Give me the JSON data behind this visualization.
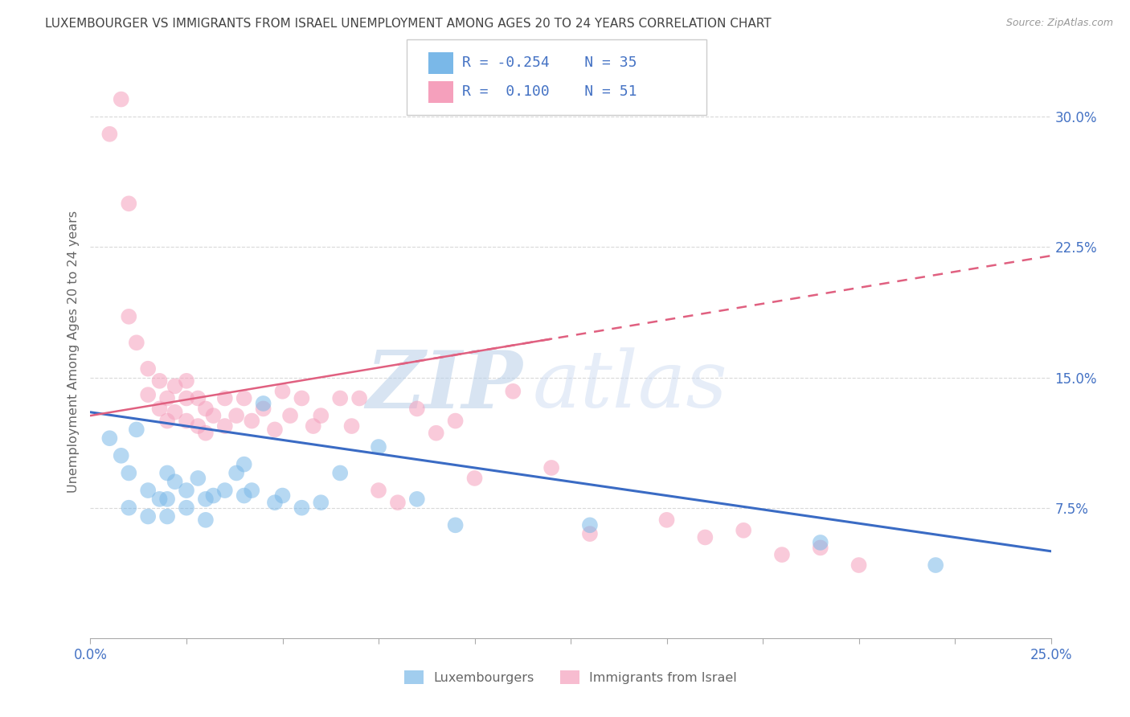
{
  "title": "LUXEMBOURGER VS IMMIGRANTS FROM ISRAEL UNEMPLOYMENT AMONG AGES 20 TO 24 YEARS CORRELATION CHART",
  "source": "Source: ZipAtlas.com",
  "ylabel": "Unemployment Among Ages 20 to 24 years",
  "xlim": [
    0.0,
    0.25
  ],
  "ylim": [
    0.0,
    0.32
  ],
  "xticks": [
    0.0,
    0.025,
    0.05,
    0.075,
    0.1,
    0.125,
    0.15,
    0.175,
    0.2,
    0.225,
    0.25
  ],
  "xtick_labels_show": [
    0.0,
    0.05,
    0.1,
    0.15,
    0.2,
    0.25
  ],
  "xtick_show_labels": [
    "0.0%",
    "",
    "",
    "",
    "",
    "",
    "",
    "",
    "",
    "",
    "25.0%"
  ],
  "yticks": [
    0.075,
    0.15,
    0.225,
    0.3
  ],
  "ytick_labels": [
    "7.5%",
    "15.0%",
    "22.5%",
    "30.0%"
  ],
  "legend_R_blue": "-0.254",
  "legend_N_blue": "35",
  "legend_R_pink": "0.100",
  "legend_N_pink": "51",
  "blue_color": "#7ab8e8",
  "pink_color": "#f5a0bc",
  "blue_scatter_x": [
    0.005,
    0.008,
    0.01,
    0.01,
    0.012,
    0.015,
    0.015,
    0.018,
    0.02,
    0.02,
    0.02,
    0.022,
    0.025,
    0.025,
    0.028,
    0.03,
    0.03,
    0.032,
    0.035,
    0.038,
    0.04,
    0.04,
    0.042,
    0.045,
    0.048,
    0.05,
    0.055,
    0.06,
    0.065,
    0.075,
    0.085,
    0.095,
    0.13,
    0.19,
    0.22
  ],
  "blue_scatter_y": [
    0.115,
    0.105,
    0.095,
    0.075,
    0.12,
    0.085,
    0.07,
    0.08,
    0.095,
    0.08,
    0.07,
    0.09,
    0.085,
    0.075,
    0.092,
    0.08,
    0.068,
    0.082,
    0.085,
    0.095,
    0.1,
    0.082,
    0.085,
    0.135,
    0.078,
    0.082,
    0.075,
    0.078,
    0.095,
    0.11,
    0.08,
    0.065,
    0.065,
    0.055,
    0.042
  ],
  "pink_scatter_x": [
    0.005,
    0.008,
    0.01,
    0.01,
    0.012,
    0.015,
    0.015,
    0.018,
    0.018,
    0.02,
    0.02,
    0.022,
    0.022,
    0.025,
    0.025,
    0.025,
    0.028,
    0.028,
    0.03,
    0.03,
    0.032,
    0.035,
    0.035,
    0.038,
    0.04,
    0.042,
    0.045,
    0.048,
    0.05,
    0.052,
    0.055,
    0.058,
    0.06,
    0.065,
    0.068,
    0.07,
    0.075,
    0.08,
    0.085,
    0.09,
    0.095,
    0.1,
    0.11,
    0.12,
    0.13,
    0.15,
    0.16,
    0.17,
    0.18,
    0.19,
    0.2
  ],
  "pink_scatter_y": [
    0.29,
    0.31,
    0.25,
    0.185,
    0.17,
    0.155,
    0.14,
    0.148,
    0.132,
    0.138,
    0.125,
    0.145,
    0.13,
    0.148,
    0.138,
    0.125,
    0.138,
    0.122,
    0.132,
    0.118,
    0.128,
    0.138,
    0.122,
    0.128,
    0.138,
    0.125,
    0.132,
    0.12,
    0.142,
    0.128,
    0.138,
    0.122,
    0.128,
    0.138,
    0.122,
    0.138,
    0.085,
    0.078,
    0.132,
    0.118,
    0.125,
    0.092,
    0.142,
    0.098,
    0.06,
    0.068,
    0.058,
    0.062,
    0.048,
    0.052,
    0.042
  ],
  "blue_trend_y_start": 0.13,
  "blue_trend_y_end": 0.05,
  "pink_trend_y_start": 0.128,
  "pink_trend_y_end": 0.22,
  "watermark_zip": "ZIP",
  "watermark_atlas": "atlas",
  "bg_color": "#ffffff",
  "grid_color": "#d0d0d0",
  "title_color": "#444444",
  "axis_label_color": "#666666",
  "tick_color": "#4472c4",
  "legend_text_color": "#4472c4",
  "legend_label_blue": "Luxembourgers",
  "legend_label_pink": "Immigrants from Israel"
}
